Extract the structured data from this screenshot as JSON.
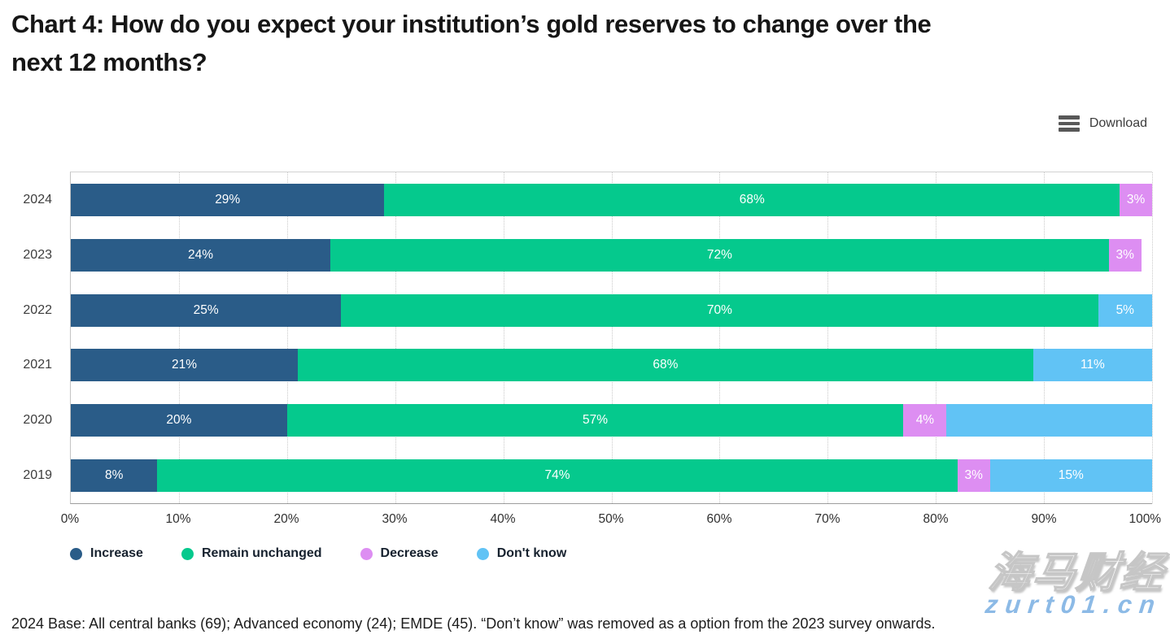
{
  "header": {
    "title_line1": "Chart 4: How do you expect your institution’s gold reserves to change over the",
    "title_line2": "next 12 months?"
  },
  "toolbar": {
    "download_label": "Download",
    "menu_icon": "hamburger-icon"
  },
  "chart_data": {
    "type": "bar",
    "orientation": "horizontal",
    "stacked": true,
    "title": "Chart 4: How do you expect your institution’s gold reserves to change over the next 12 months?",
    "xlim": [
      0,
      100
    ],
    "x_ticks": [
      "0%",
      "10%",
      "20%",
      "30%",
      "40%",
      "50%",
      "60%",
      "70%",
      "80%",
      "90%",
      "100%"
    ],
    "grid": "vertical-dotted",
    "legend_position": "bottom",
    "categories": [
      "2024",
      "2023",
      "2022",
      "2021",
      "2020",
      "2019"
    ],
    "series": [
      {
        "name": "Increase",
        "color": "#2a5c88",
        "values": [
          29,
          24,
          25,
          21,
          20,
          8
        ],
        "labels": [
          "29%",
          "24%",
          "25%",
          "21%",
          "20%",
          "8%"
        ]
      },
      {
        "name": "Remain unchanged",
        "color": "#05c98d",
        "values": [
          68,
          72,
          70,
          68,
          57,
          74
        ],
        "labels": [
          "68%",
          "72%",
          "70%",
          "68%",
          "57%",
          "74%"
        ]
      },
      {
        "name": "Decrease",
        "color": "#dd8ef2",
        "values": [
          3,
          3,
          0,
          0,
          4,
          3
        ],
        "labels": [
          "3%",
          "3%",
          "",
          "",
          "4%",
          "3%"
        ]
      },
      {
        "name": "Don't know",
        "color": "#61c3f5",
        "values": [
          0,
          0,
          5,
          11,
          19,
          15
        ],
        "labels": [
          "",
          "",
          "5%",
          "11%",
          "",
          "15%"
        ]
      }
    ]
  },
  "footnote": "2024 Base: All central banks (69); Advanced economy (24); EMDE (45). “Don’t know” was removed as a option from the 2023 survey onwards.",
  "watermark": {
    "line1": "海马财经",
    "line2": "zurt01.cn"
  }
}
